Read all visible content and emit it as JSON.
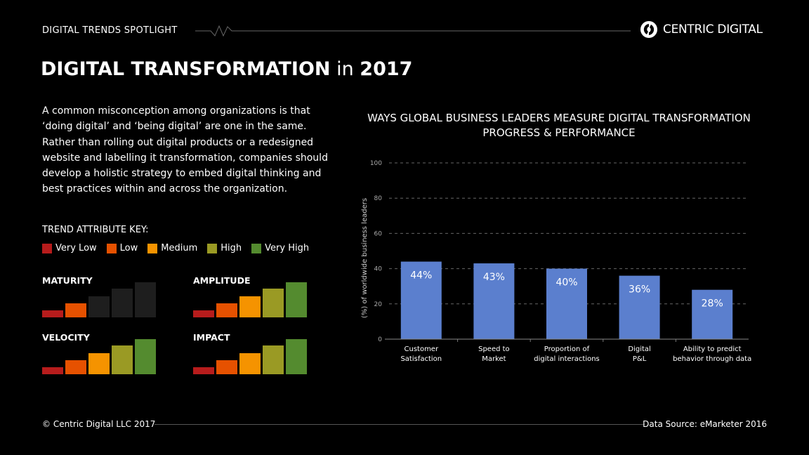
{
  "header": {
    "spotlight": "DIGITAL TRENDS SPOTLIGHT",
    "brand": "CENTRIC DIGITAL"
  },
  "title": {
    "bold": "DIGITAL TRANSFORMATION",
    "connector": " in ",
    "year": "2017"
  },
  "paragraph": "A common misconception among organizations is that ‘doing digital’ and ‘being digital’ are one in the same. Rather than rolling out digital products or a redesigned website and labelling it transformation, companies should develop a holistic strategy to embed digital thinking and best practices within and across the organization.",
  "key": {
    "title": "TREND ATTRIBUTE KEY:",
    "items": [
      {
        "label": "Very Low",
        "color": "#b71c1c"
      },
      {
        "label": "Low",
        "color": "#e65100"
      },
      {
        "label": "Medium",
        "color": "#f59300"
      },
      {
        "label": "High",
        "color": "#9a9a24"
      },
      {
        "label": "Very High",
        "color": "#548b2f"
      }
    ]
  },
  "attributes": [
    {
      "name": "MATURITY",
      "level": 2
    },
    {
      "name": "AMPLITUDE",
      "level": 5
    },
    {
      "name": "VELOCITY",
      "level": 5
    },
    {
      "name": "IMPACT",
      "level": 5
    }
  ],
  "colors": {
    "bar": "#5b7fce",
    "inactive": "#1e1e1e"
  },
  "chart_data": {
    "type": "bar",
    "title": "WAYS GLOBAL BUSINESS LEADERS MEASURE DIGITAL TRANSFORMATION PROGRESS & PERFORMANCE",
    "ylabel": "(%) of worldwide business leaders",
    "xlabel": "",
    "ylim": [
      0,
      100
    ],
    "yticks": [
      0,
      20,
      40,
      60,
      80,
      100
    ],
    "grid": true,
    "categories": [
      [
        "Customer",
        "Satisfaction"
      ],
      [
        "Speed to",
        "Market"
      ],
      [
        "Proportion of",
        "digital interactions"
      ],
      [
        "Digital",
        "P&L"
      ],
      [
        "Ability to predict",
        "behavior through data"
      ]
    ],
    "values": [
      44,
      43,
      40,
      36,
      28
    ],
    "data_labels": [
      "44%",
      "43%",
      "40%",
      "36%",
      "28%"
    ]
  },
  "footer": {
    "copyright": "© Centric Digital LLC 2017",
    "source": "Data Source: eMarketer 2016"
  }
}
